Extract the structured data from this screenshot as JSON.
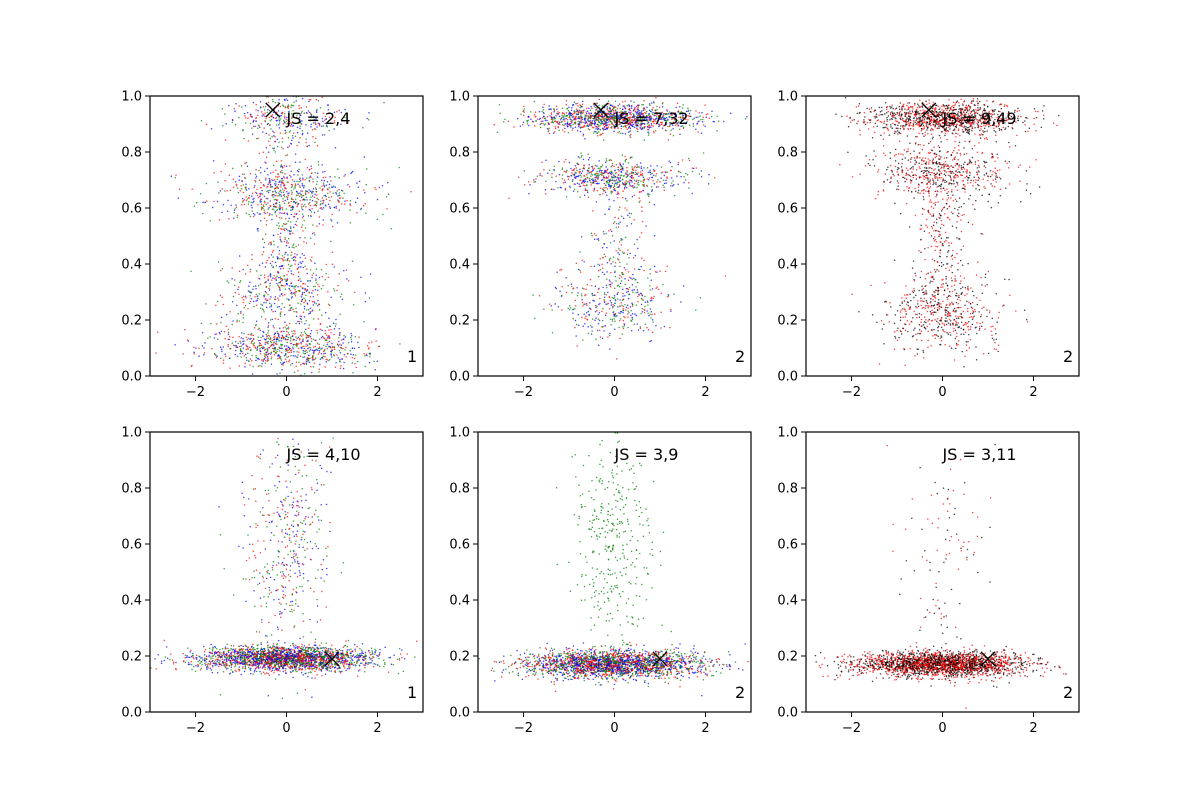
{
  "colors": {
    "blue": "#0000ff",
    "red": "#ff0000",
    "green": "#008000",
    "black": "#000000"
  },
  "chart_data": [
    {
      "type": "scatter",
      "panel_label": "1",
      "annotation": "JS = 2,4",
      "marker": {
        "symbol": "x",
        "x": -0.3,
        "y": 0.95
      },
      "xlim": [
        -3,
        3
      ],
      "ylim": [
        0,
        1
      ],
      "xticks": [
        "−2",
        "0",
        "2"
      ],
      "yticks": [
        "0.0",
        "0.2",
        "0.4",
        "0.6",
        "0.8",
        "1.0"
      ],
      "series_colors": [
        "blue",
        "red",
        "green"
      ],
      "clusters": [
        {
          "y": 0.1,
          "sy": 0.04,
          "sx": 0.9,
          "n": 700
        },
        {
          "y": 0.3,
          "sy": 0.07,
          "sx": 0.7,
          "n": 350
        },
        {
          "y": 0.65,
          "sy": 0.05,
          "sx": 0.9,
          "n": 550
        },
        {
          "y": 0.92,
          "sy": 0.04,
          "sx": 0.7,
          "n": 300
        },
        {
          "y": 0.5,
          "sy": 0.25,
          "sx": 0.35,
          "n": 450
        }
      ]
    },
    {
      "type": "scatter",
      "panel_label": "2",
      "annotation": "JS = 7,32",
      "marker": {
        "symbol": "x",
        "x": -0.3,
        "y": 0.95
      },
      "xlim": [
        -3,
        3
      ],
      "ylim": [
        0,
        1
      ],
      "xticks": [
        "−2",
        "0",
        "2"
      ],
      "yticks": [
        "0.0",
        "0.2",
        "0.4",
        "0.6",
        "0.8",
        "1.0"
      ],
      "series_colors": [
        "blue",
        "red",
        "green"
      ],
      "clusters": [
        {
          "y": 0.92,
          "sy": 0.025,
          "sx": 0.9,
          "n": 1300
        },
        {
          "y": 0.71,
          "sy": 0.035,
          "sx": 0.8,
          "n": 600
        },
        {
          "y": 0.26,
          "sy": 0.07,
          "sx": 0.65,
          "n": 400
        },
        {
          "y": 0.5,
          "sy": 0.12,
          "sx": 0.3,
          "n": 150
        }
      ]
    },
    {
      "type": "scatter",
      "panel_label": "2",
      "annotation": "JS = 9,49",
      "marker": {
        "symbol": "x",
        "x": -0.3,
        "y": 0.95
      },
      "xlim": [
        -3,
        3
      ],
      "ylim": [
        0,
        1
      ],
      "xticks": [
        "−2",
        "0",
        "2"
      ],
      "yticks": [
        "0.0",
        "0.2",
        "0.4",
        "0.6",
        "0.8",
        "1.0"
      ],
      "series_colors": [
        "red",
        "black"
      ],
      "clusters": [
        {
          "y": 0.92,
          "sy": 0.03,
          "sx": 0.85,
          "n": 1200
        },
        {
          "y": 0.73,
          "sy": 0.05,
          "sx": 0.75,
          "n": 550
        },
        {
          "y": 0.22,
          "sy": 0.07,
          "sx": 0.65,
          "n": 500
        },
        {
          "y": 0.5,
          "sy": 0.14,
          "sx": 0.3,
          "n": 250
        }
      ]
    },
    {
      "type": "scatter",
      "panel_label": "1",
      "annotation": "JS = 4,10",
      "marker": {
        "symbol": "x",
        "x": 1.0,
        "y": 0.19
      },
      "xlim": [
        -3,
        3
      ],
      "ylim": [
        0,
        1
      ],
      "xticks": [
        "−2",
        "0",
        "2"
      ],
      "yticks": [
        "0.0",
        "0.2",
        "0.4",
        "0.6",
        "0.8",
        "1.0"
      ],
      "series_colors": [
        "blue",
        "red",
        "green"
      ],
      "clusters": [
        {
          "y": 0.19,
          "sy": 0.022,
          "sx": 1.0,
          "n": 2400
        },
        {
          "y": 0.6,
          "sy": 0.2,
          "sx": 0.45,
          "n": 450
        }
      ]
    },
    {
      "type": "scatter",
      "panel_label": "2",
      "annotation": "JS = 3,9",
      "marker": {
        "symbol": "x",
        "x": 1.0,
        "y": 0.19
      },
      "xlim": [
        -3,
        3
      ],
      "ylim": [
        0,
        1
      ],
      "xticks": [
        "−2",
        "0",
        "2"
      ],
      "yticks": [
        "0.0",
        "0.2",
        "0.4",
        "0.6",
        "0.8",
        "1.0"
      ],
      "series_colors": [
        "blue",
        "red",
        "green"
      ],
      "clusters": [
        {
          "y": 0.17,
          "sy": 0.025,
          "sx": 1.0,
          "n": 2400
        },
        {
          "y": 0.6,
          "sy": 0.2,
          "sx": 0.45,
          "n": 350,
          "color": "green"
        }
      ]
    },
    {
      "type": "scatter",
      "panel_label": "2",
      "annotation": "JS = 3,11",
      "marker": {
        "symbol": "x",
        "x": 1.0,
        "y": 0.19
      },
      "xlim": [
        -3,
        3
      ],
      "ylim": [
        0,
        1
      ],
      "xticks": [
        "−2",
        "0",
        "2"
      ],
      "yticks": [
        "0.0",
        "0.2",
        "0.4",
        "0.6",
        "0.8",
        "1.0"
      ],
      "series_colors": [
        "red",
        "black"
      ],
      "clusters": [
        {
          "y": 0.17,
          "sy": 0.022,
          "sx": 0.95,
          "n": 2400
        },
        {
          "y": 0.55,
          "sy": 0.22,
          "sx": 0.5,
          "n": 120
        }
      ]
    }
  ]
}
